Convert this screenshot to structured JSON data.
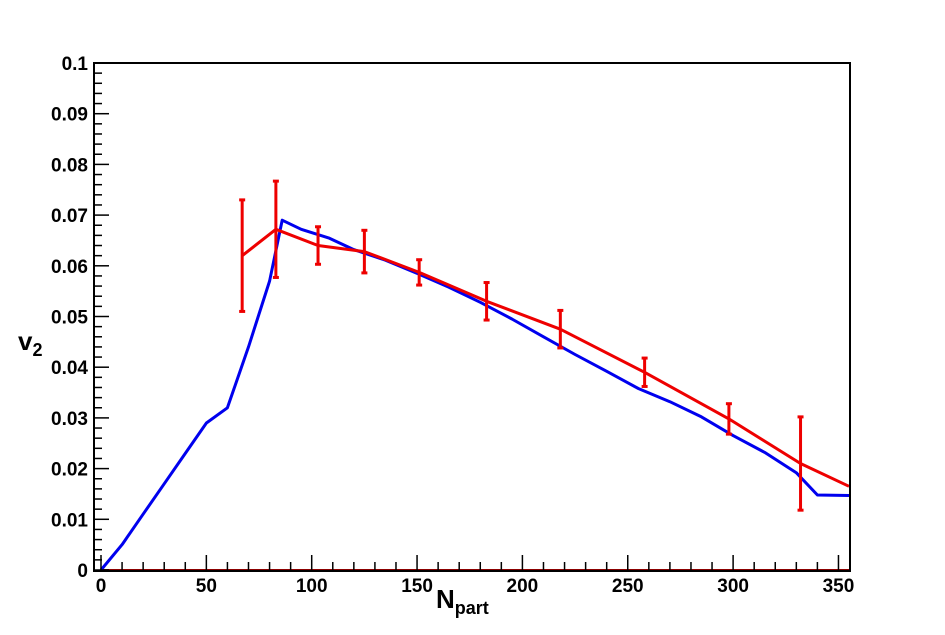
{
  "chart_data": {
    "type": "line",
    "title": "",
    "xlabel_main": "N",
    "xlabel_sub": "part",
    "ylabel_main": "v",
    "ylabel_sub": "2",
    "xlim": [
      0,
      355
    ],
    "ylim": [
      0,
      0.1
    ],
    "x_ticks": [
      0,
      50,
      100,
      150,
      200,
      250,
      300,
      350
    ],
    "x_tick_labels": [
      "0",
      "50",
      "100",
      "150",
      "200",
      "250",
      "300",
      "350"
    ],
    "y_ticks": [
      0,
      0.01,
      0.02,
      0.03,
      0.04,
      0.05,
      0.06,
      0.07,
      0.08,
      0.09,
      0.1
    ],
    "y_tick_labels": [
      "0",
      "0.01",
      "0.02",
      "0.03",
      "0.04",
      "0.05",
      "0.06",
      "0.07",
      "0.08",
      "0.09",
      "0.1"
    ],
    "grid": false,
    "legend": "none",
    "series": [
      {
        "color": "#0000ee",
        "style": "line",
        "x": [
          0,
          10,
          20,
          30,
          40,
          50,
          60,
          70,
          80,
          86,
          95,
          108,
          120,
          135,
          150,
          165,
          180,
          195,
          210,
          225,
          240,
          255,
          270,
          285,
          300,
          315,
          330,
          340,
          355
        ],
        "y": [
          0,
          0.005,
          0.011,
          0.017,
          0.023,
          0.029,
          0.032,
          0.044,
          0.057,
          0.069,
          0.0672,
          0.0655,
          0.0632,
          0.0611,
          0.0585,
          0.0558,
          0.0528,
          0.0495,
          0.046,
          0.0425,
          0.0392,
          0.0358,
          0.0332,
          0.0302,
          0.0265,
          0.0232,
          0.0192,
          0.0148,
          0.0147
        ]
      },
      {
        "color": "#ee0000",
        "style": "line+errorbars",
        "x": [
          67,
          83,
          103,
          125,
          151,
          183,
          218,
          258,
          298,
          332,
          355
        ],
        "y": [
          0.062,
          0.0672,
          0.064,
          0.0628,
          0.0587,
          0.053,
          0.0475,
          0.039,
          0.0298,
          0.021,
          0.0165
        ],
        "errors": [
          0.011,
          0.0095,
          0.0037,
          0.0042,
          0.0025,
          0.0037,
          0.0037,
          0.0028,
          0.003,
          0.0092,
          0
        ]
      },
      {
        "color": "#8b0000",
        "style": "line",
        "x": [
          0,
          355
        ],
        "y": [
          0,
          0
        ]
      }
    ]
  }
}
